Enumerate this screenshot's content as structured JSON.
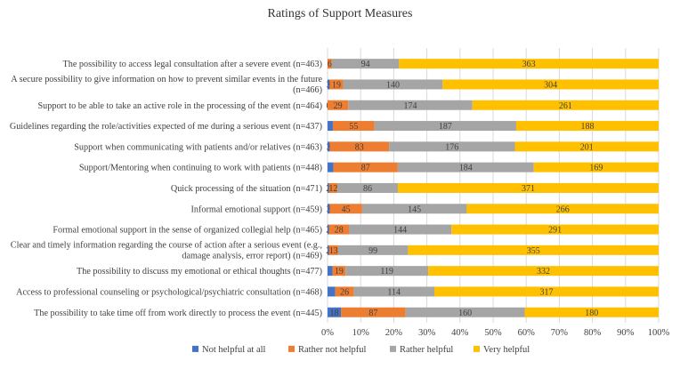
{
  "chart_data": {
    "type": "bar",
    "orientation": "horizontal",
    "stacked": "percent",
    "title": "Ratings of Support Measures",
    "xlabel": "",
    "ylabel": "",
    "xlim": [
      0,
      100
    ],
    "x_ticks": [
      "0%",
      "10%",
      "20%",
      "30%",
      "40%",
      "50%",
      "60%",
      "70%",
      "80%",
      "90%",
      "100%"
    ],
    "grid": true,
    "legend_position": "bottom",
    "categories": [
      [
        "The possibility to access legal consultation after a severe event (n=463)"
      ],
      [
        "A secure possibility to give information on how to prevent similar events in the future",
        "(n=466)"
      ],
      [
        "Support to be able to take an active role in the processing of the event (n=464)"
      ],
      [
        "Guidelines regarding the role/activities expected of me during a serious event (n=437)"
      ],
      [
        "Support when communicating with patients and/or relatives (n=463)"
      ],
      [
        "Support/Mentoring when continuing to work with patients (n=448)"
      ],
      [
        "Quick processing of the situation (n=471)"
      ],
      [
        "Informal emotional support (n=459)"
      ],
      [
        "Formal emotional support in the sense of organized collegial help (n=465)"
      ],
      [
        "Clear and timely information regarding the course of action after a serious event (e.g.,",
        "damage analysis, error report) (n=469)"
      ],
      [
        "The possibility to discuss my emotional or ethical thoughts (n=477)"
      ],
      [
        "Access to professional counseling or psychological/psychiatric consultation (n=468)"
      ],
      [
        "The possibility to take time off from work directly to process the event (n=445)"
      ]
    ],
    "series": [
      {
        "name": "Not helpful at all",
        "color": "#4472C4",
        "values": [
          0,
          3,
          0,
          7,
          3,
          8,
          2,
          3,
          2,
          2,
          7,
          11,
          18
        ]
      },
      {
        "name": "Rather not helpful",
        "color": "#ED7D31",
        "values": [
          6,
          19,
          29,
          55,
          83,
          87,
          12,
          45,
          28,
          13,
          19,
          26,
          87
        ]
      },
      {
        "name": "Rather helpful",
        "color": "#A5A5A5",
        "values": [
          94,
          140,
          174,
          187,
          176,
          184,
          86,
          145,
          144,
          99,
          119,
          114,
          160
        ]
      },
      {
        "name": "Very helpful",
        "color": "#FFC000",
        "values": [
          363,
          304,
          261,
          188,
          201,
          169,
          371,
          266,
          291,
          355,
          332,
          317,
          180
        ]
      }
    ],
    "data_labels": [
      [
        "",
        "6",
        "94",
        "363"
      ],
      [
        "3",
        "19",
        "140",
        "304"
      ],
      [
        "0",
        "29",
        "174",
        "261"
      ],
      [
        "",
        "55",
        "187",
        "188"
      ],
      [
        "3",
        "83",
        "176",
        "201"
      ],
      [
        "",
        "87",
        "184",
        "169"
      ],
      [
        "2",
        "12",
        "86",
        "371"
      ],
      [
        "3",
        "45",
        "145",
        "266"
      ],
      [
        "2",
        "28",
        "144",
        "291"
      ],
      [
        "2",
        "13",
        "99",
        "355"
      ],
      [
        "",
        "19",
        "119",
        "332"
      ],
      [
        "",
        "26",
        "114",
        "317"
      ],
      [
        "18",
        "87",
        "160",
        "180"
      ]
    ]
  }
}
